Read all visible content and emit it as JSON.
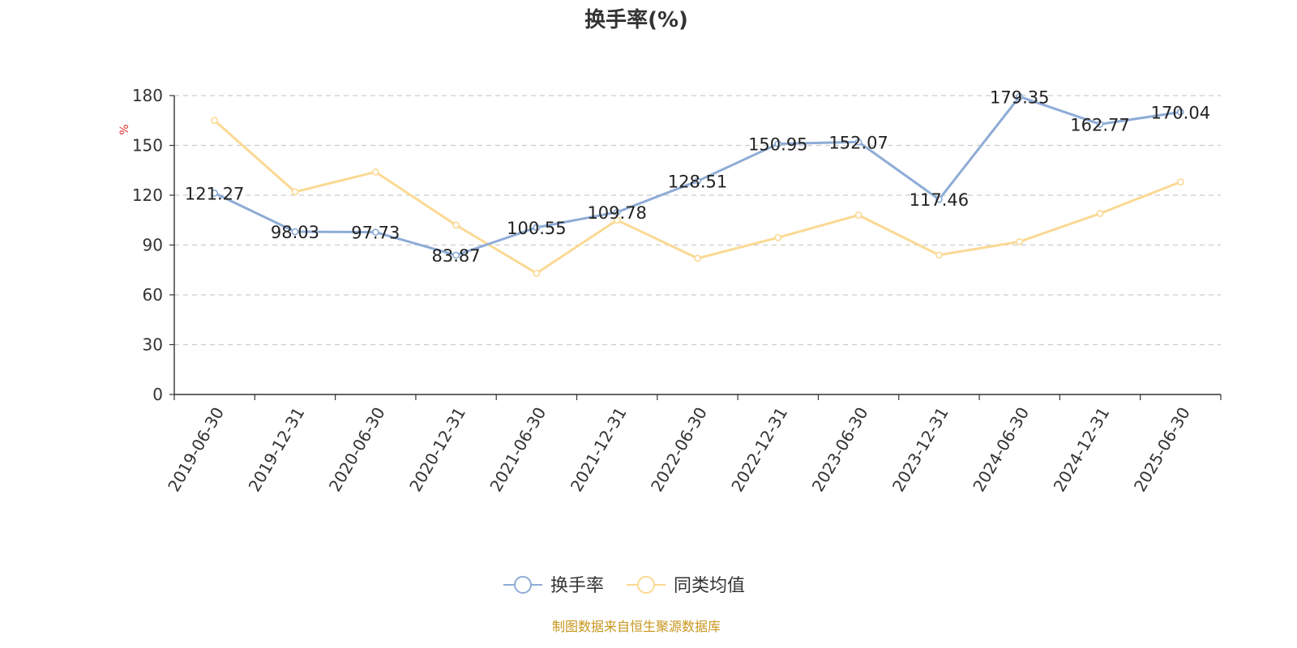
{
  "chart_data": {
    "type": "line",
    "title": "换手率(%)",
    "ylabel": "%",
    "xlabel": "",
    "ylim": [
      0,
      180
    ],
    "yticks": [
      0,
      30,
      60,
      90,
      120,
      150,
      180
    ],
    "grid": true,
    "legend_position": "bottom",
    "categories": [
      "2019-06-30",
      "2019-12-31",
      "2020-06-30",
      "2020-12-31",
      "2021-06-30",
      "2021-12-31",
      "2022-06-30",
      "2022-12-31",
      "2023-06-30",
      "2023-12-31",
      "2024-06-30",
      "2024-12-31",
      "2025-06-30"
    ],
    "series": [
      {
        "name": "换手率",
        "color": "#8eacd6",
        "show_labels": true,
        "values": [
          121.27,
          98.03,
          97.73,
          83.87,
          100.55,
          109.78,
          128.51,
          150.95,
          152.07,
          117.46,
          179.35,
          162.77,
          170.04
        ],
        "labels": [
          "121.27",
          "98.03",
          "97.73",
          "83.87",
          "100.55",
          "109.78",
          "128.51",
          "150.95",
          "152.07",
          "117.46",
          "179.35",
          "162.77",
          "170.04"
        ]
      },
      {
        "name": "同类均值",
        "color": "#fbd993",
        "show_labels": false,
        "values": [
          165,
          122,
          134,
          102,
          73,
          105,
          82,
          94.5,
          108,
          84,
          92,
          109,
          128
        ]
      }
    ]
  },
  "source": "制图数据来自恒生聚源数据库"
}
